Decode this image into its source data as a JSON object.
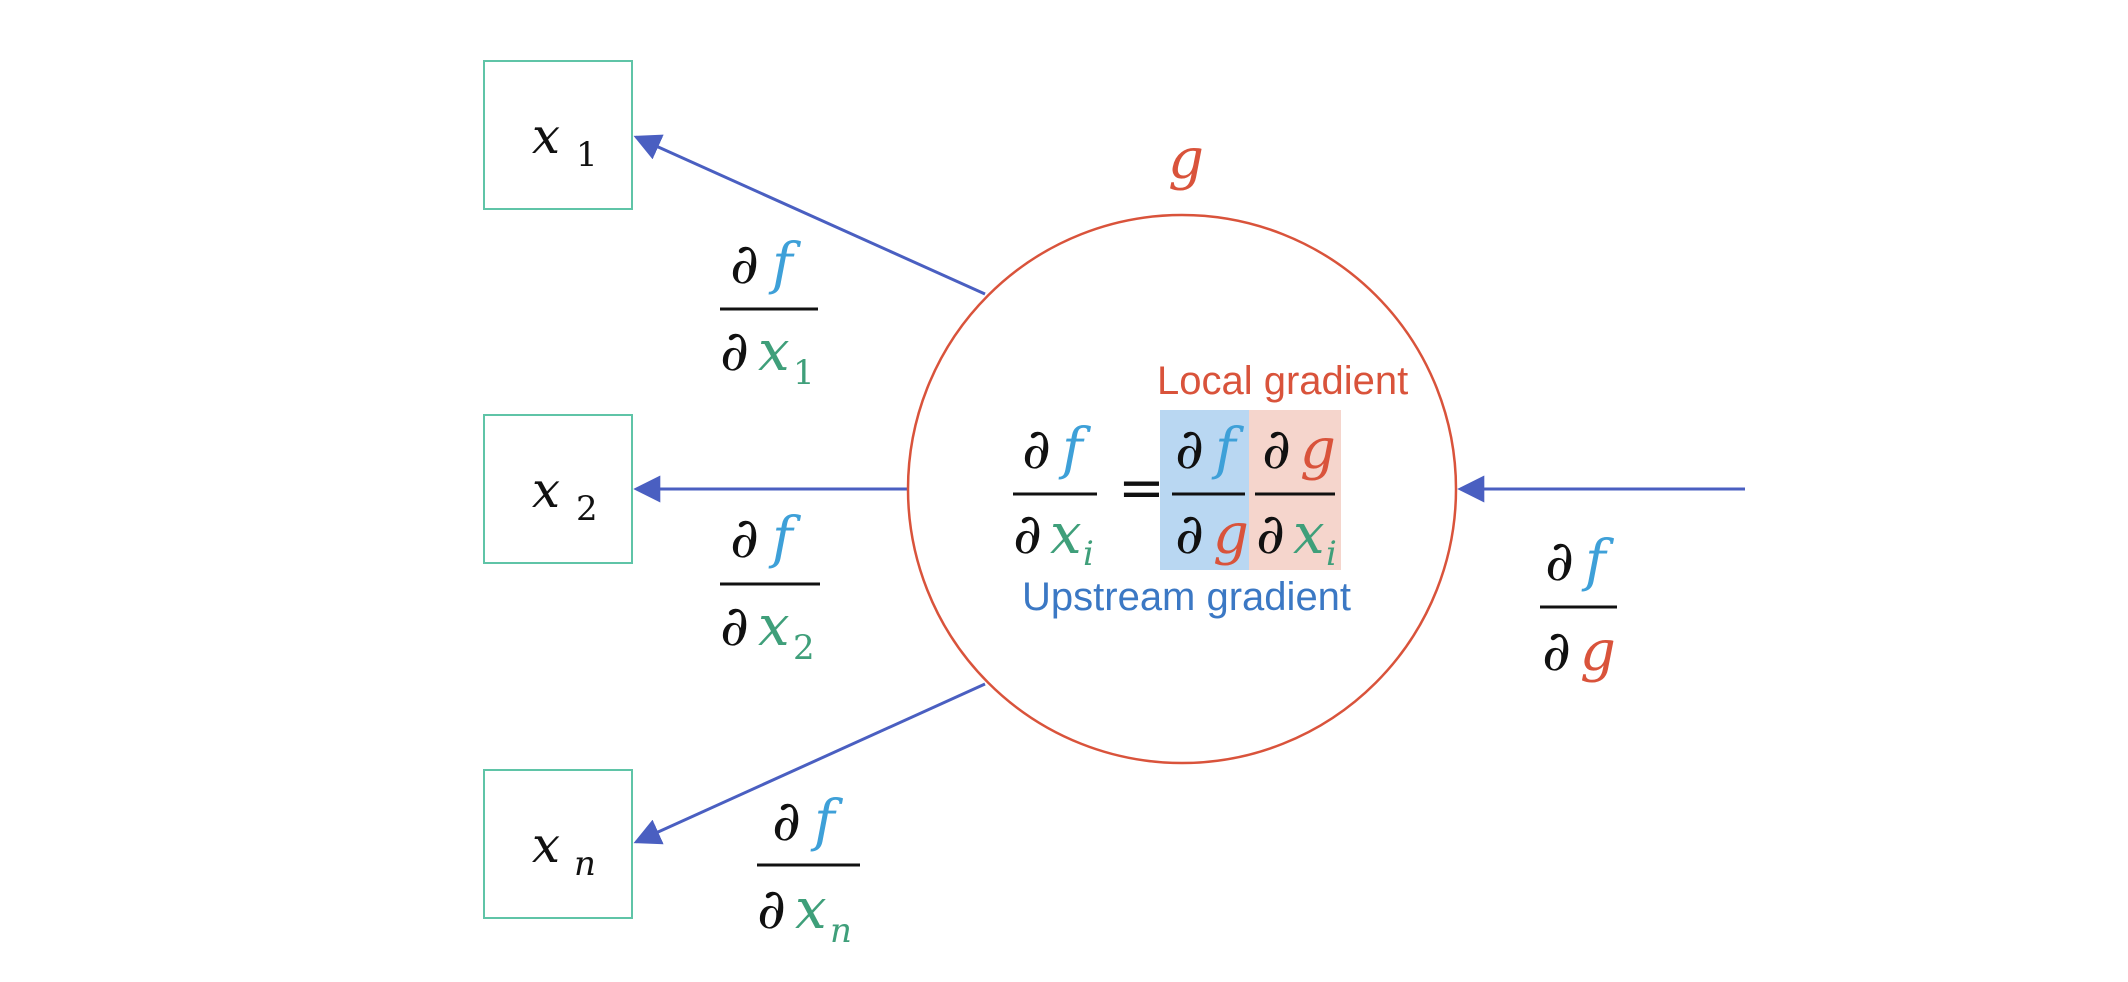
{
  "colors": {
    "box_border": "#5fc4a7",
    "arrow": "#4a5fc1",
    "node_circle": "#d9533b",
    "f_color": "#3ea0d8",
    "g_color": "#d9533b",
    "x_color": "#3f9f7a",
    "text_black": "#111111",
    "upstream_highlight": "#b9d7f2",
    "local_highlight": "#f5d5cc",
    "upstream_label_color": "#3b78c4",
    "local_label_color": "#d9533b"
  },
  "node": {
    "label": "g"
  },
  "inputs": [
    {
      "var": "x",
      "sub": "1"
    },
    {
      "var": "x",
      "sub": "2"
    },
    {
      "var": "x",
      "sub": "n"
    }
  ],
  "symbols": {
    "partial": "∂",
    "f": "f",
    "g": "g",
    "x": "x",
    "equals": "=",
    "i": "i"
  },
  "edge_gradients": [
    {
      "sub": "1"
    },
    {
      "sub": "2"
    },
    {
      "sub": "n"
    }
  ],
  "incoming_gradient": {
    "num": "f",
    "den": "g"
  },
  "labels": {
    "local_gradient": "Local gradient",
    "upstream_gradient": "Upstream gradient"
  }
}
